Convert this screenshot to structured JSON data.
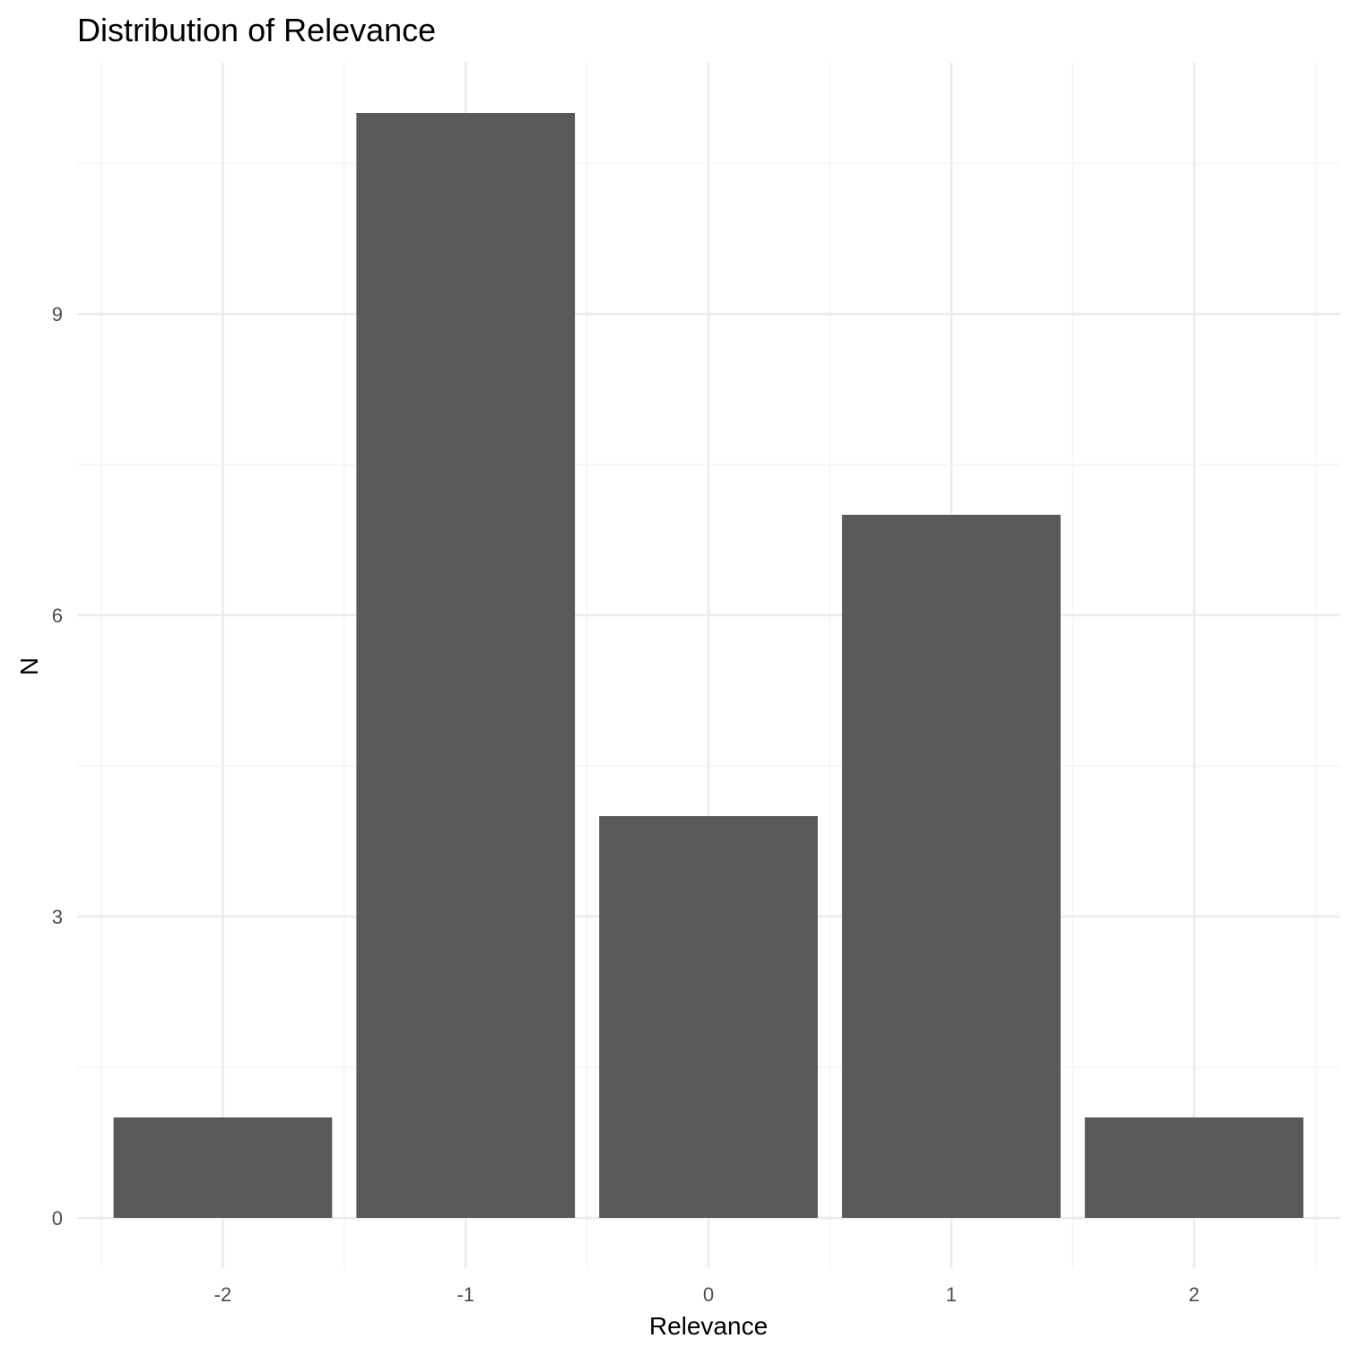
{
  "chart_data": {
    "type": "bar",
    "title": "Distribution of Relevance",
    "xlabel": "Relevance",
    "ylabel": "N",
    "categories": [
      "-2",
      "-1",
      "0",
      "1",
      "2"
    ],
    "values": [
      1,
      11,
      4,
      7,
      1
    ],
    "yticks": [
      "0",
      "3",
      "6",
      "9"
    ],
    "ylim": [
      -0.5,
      11.5
    ],
    "grid": true,
    "legend": "none",
    "colors": {
      "bar": "#595959",
      "grid": "#ebebeb",
      "background": "#ffffff"
    }
  }
}
